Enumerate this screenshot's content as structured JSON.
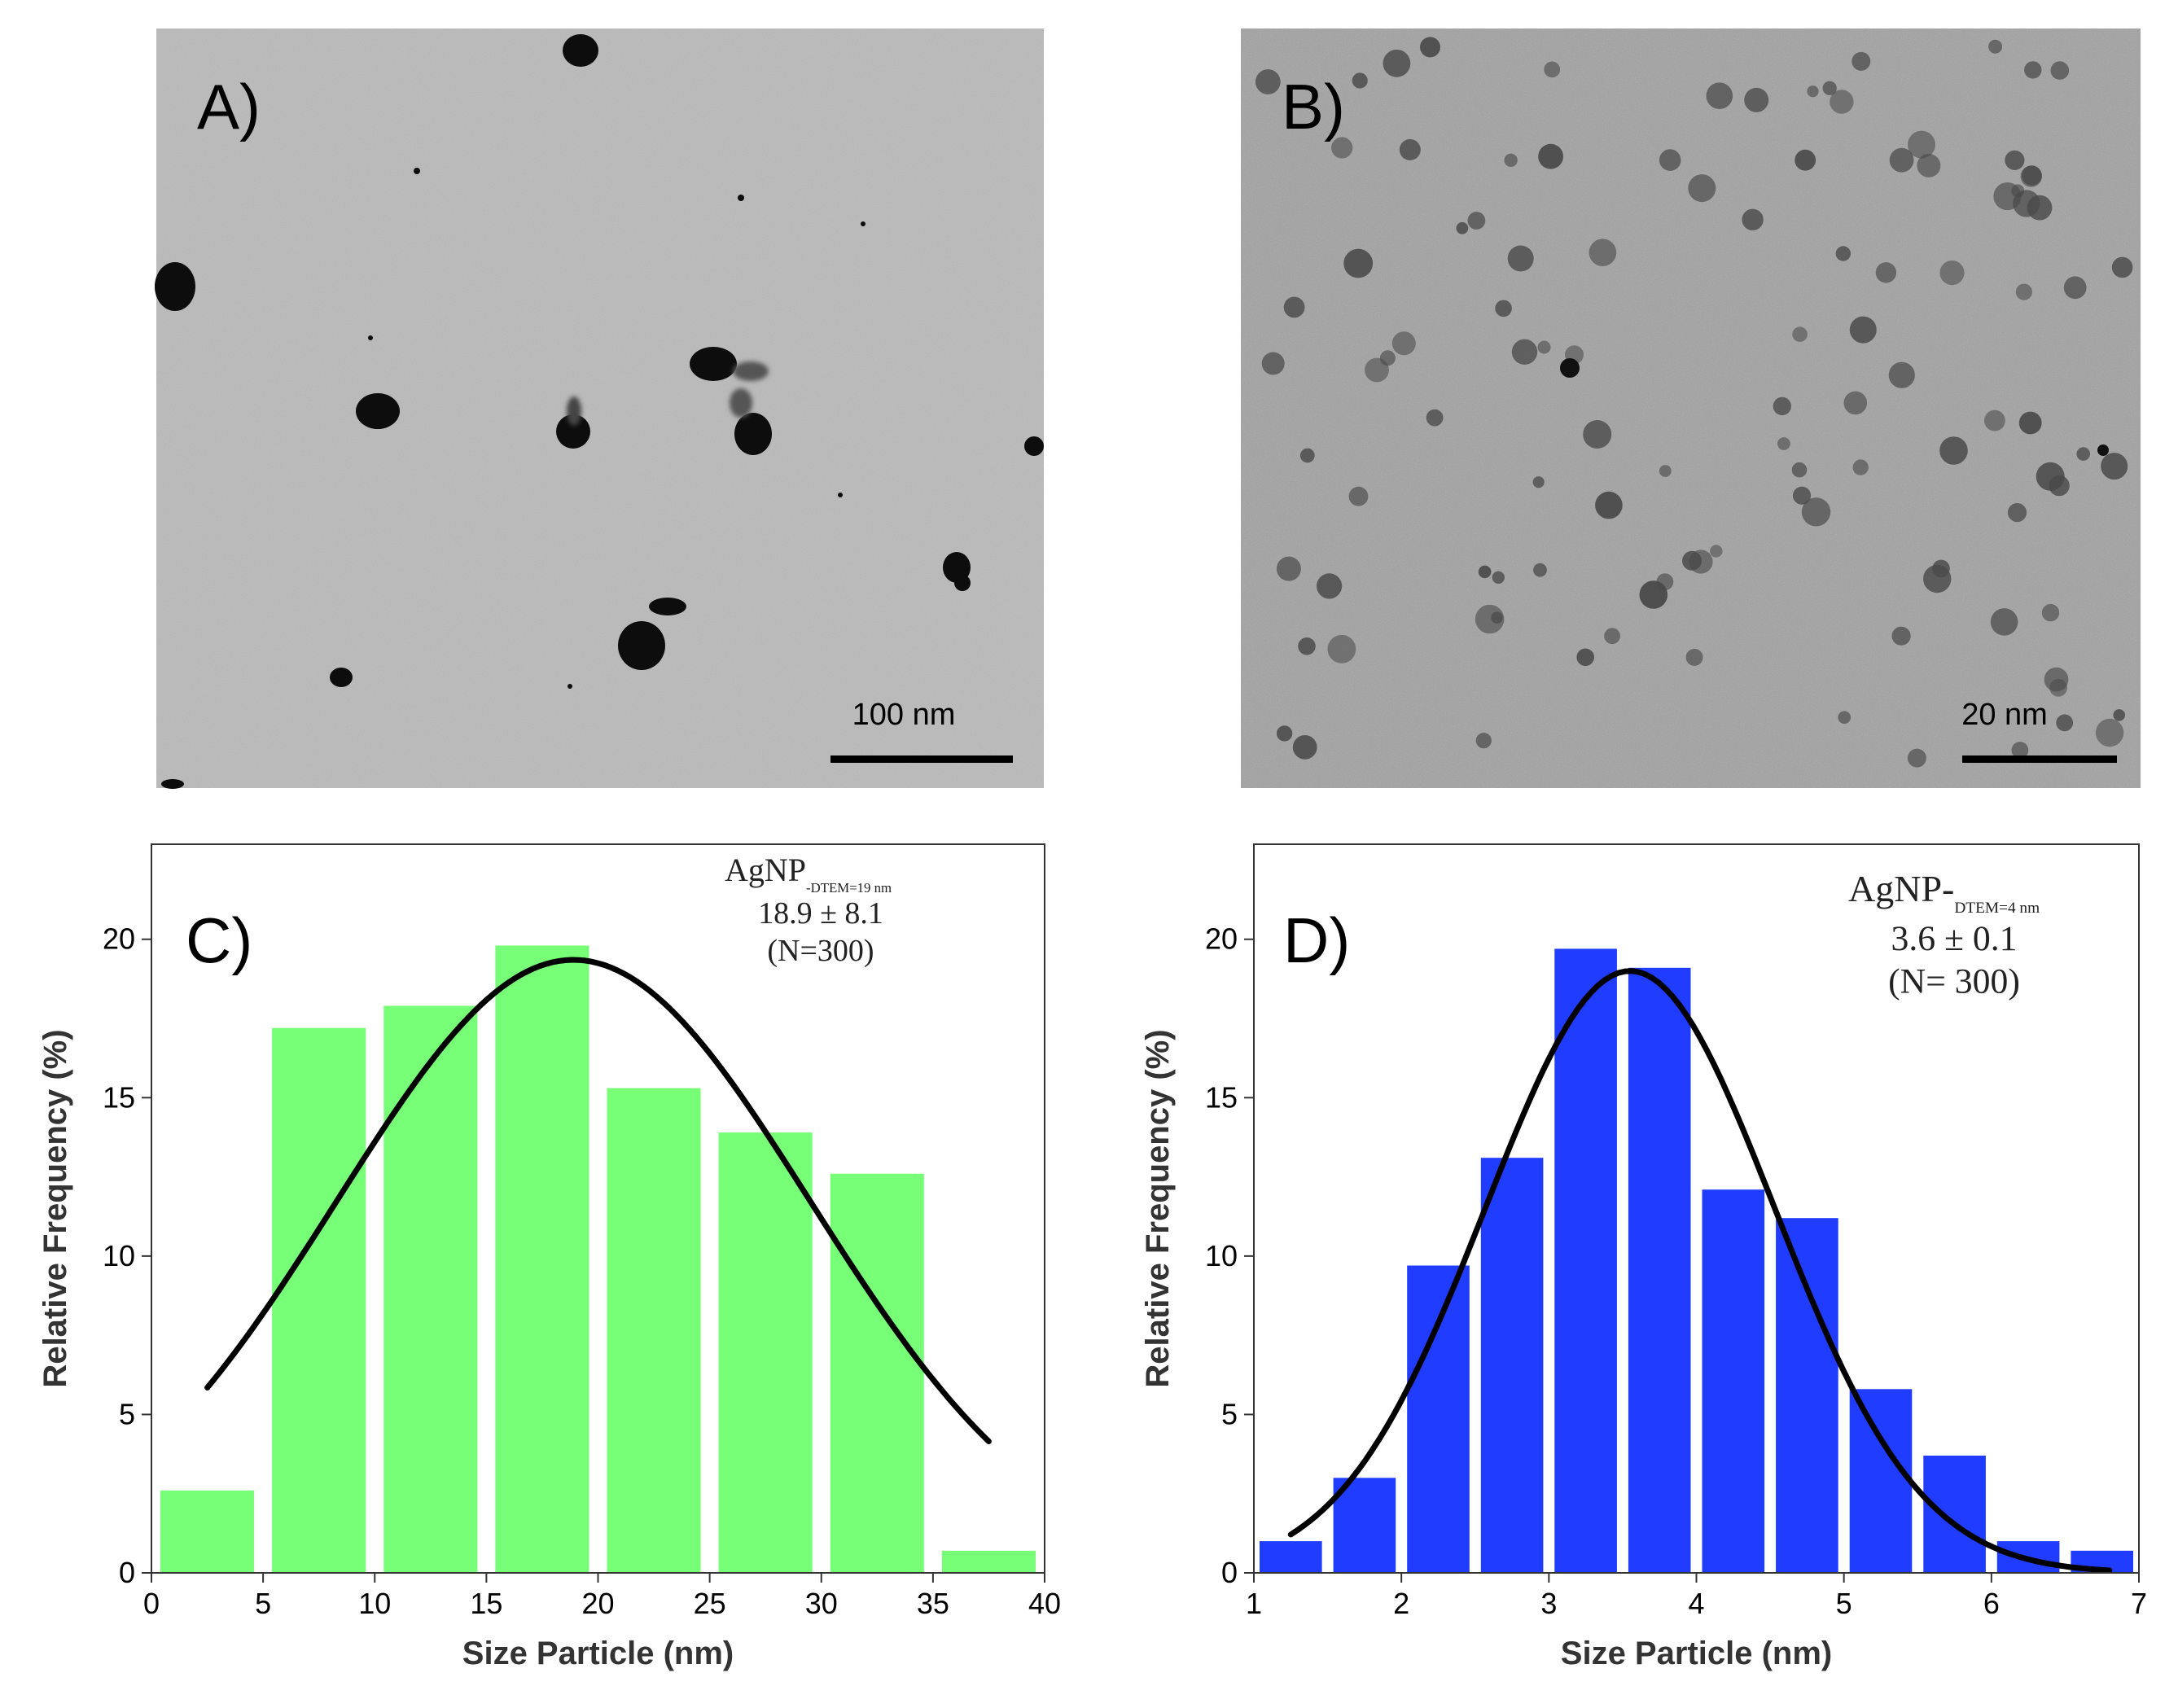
{
  "panels": {
    "a": {
      "label": "A)",
      "scale_bar": "100 nm"
    },
    "b": {
      "label": "B)",
      "scale_bar": "20 nm"
    }
  },
  "colors": {
    "green_bars": "#77ff77",
    "blue_bars": "#1f3cff",
    "fit_curve": "#000000",
    "tem_bg_a": "#b3b3b3",
    "tem_bg_b": "#9c9c9c"
  },
  "chart_data": [
    {
      "id": "c",
      "type": "bar",
      "panel_label": "C)",
      "xlabel": "Size Particle (nm)",
      "ylabel": "Relative Frequency (%)",
      "xlim": [
        0,
        40
      ],
      "ylim": [
        0,
        23
      ],
      "xticks": [
        0,
        5,
        10,
        15,
        20,
        25,
        30,
        35,
        40
      ],
      "yticks": [
        0,
        5,
        10,
        15,
        20
      ],
      "bin_edges": [
        0,
        5,
        10,
        15,
        20,
        25,
        30,
        35,
        40
      ],
      "values": [
        2.6,
        17.2,
        17.9,
        19.8,
        15.3,
        13.9,
        12.6,
        0.7
      ],
      "fit": {
        "type": "gaussian",
        "amplitude": 19.35,
        "mean": 18.9,
        "sd": 10.6,
        "x_range": [
          2.5,
          37.5
        ]
      },
      "annotation": {
        "title": "AgNP",
        "subscript": "-DTEM=19 nm",
        "stat": "18.9 ± 8.1",
        "n": "(N=300)"
      }
    },
    {
      "id": "d",
      "type": "bar",
      "panel_label": "D)",
      "xlabel": "Size Particle (nm)",
      "ylabel": "Relative Frequency (%)",
      "xlim": [
        1,
        7
      ],
      "ylim": [
        0,
        23
      ],
      "xticks": [
        1,
        2,
        3,
        4,
        5,
        6,
        7
      ],
      "yticks": [
        0,
        5,
        10,
        15,
        20
      ],
      "bin_edges": [
        1,
        1.5,
        2,
        2.5,
        3,
        3.5,
        4,
        4.5,
        5,
        5.5,
        6,
        6.5,
        7
      ],
      "values": [
        1.0,
        3.0,
        9.7,
        13.1,
        19.7,
        19.1,
        12.1,
        11.2,
        5.8,
        3.7,
        1.0,
        0.7
      ],
      "fit": {
        "type": "gaussian",
        "amplitude": 19.0,
        "mean": 3.55,
        "sd": 0.98,
        "x_range": [
          1.25,
          6.8
        ]
      },
      "annotation": {
        "title": "AgNP-",
        "subscript": "DTEM=4 nm",
        "stat": "3.6 ± 0.1",
        "n": "(N= 300)"
      }
    }
  ]
}
